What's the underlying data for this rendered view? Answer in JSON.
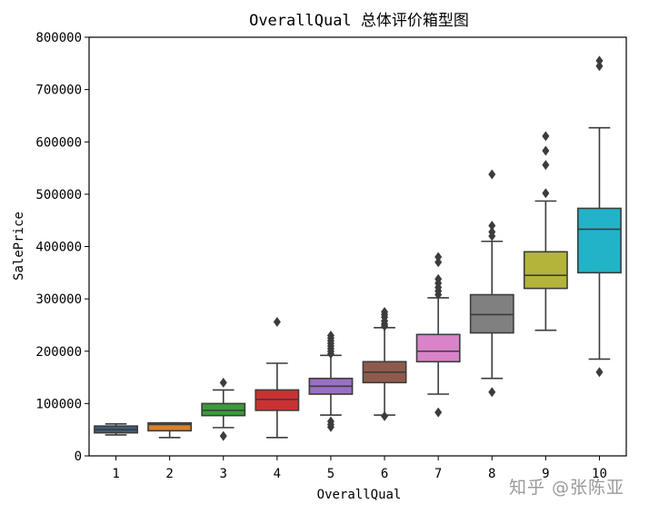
{
  "chart_data": {
    "type": "box",
    "title": "OverallQual 总体评价箱型图",
    "xlabel": "OverallQual",
    "ylabel": "SalePrice",
    "ylim": [
      0,
      800000
    ],
    "yticks": [
      0,
      100000,
      200000,
      300000,
      400000,
      500000,
      600000,
      700000,
      800000
    ],
    "grid": false,
    "categories": [
      "1",
      "2",
      "3",
      "4",
      "5",
      "6",
      "7",
      "8",
      "9",
      "10"
    ],
    "colors": [
      "#3a5f80",
      "#d9822b",
      "#3b9a3b",
      "#c93232",
      "#9970c2",
      "#8f5a4c",
      "#d983c8",
      "#808080",
      "#b4b43a",
      "#22b3c8"
    ],
    "boxes": [
      {
        "category": "1",
        "q1": 44000,
        "median": 50000,
        "q3": 57000,
        "whisker_low": 40000,
        "whisker_high": 61000,
        "outliers": []
      },
      {
        "category": "2",
        "q1": 48000,
        "median": 60000,
        "q3": 63000,
        "whisker_low": 35000,
        "whisker_high": 63000,
        "outliers": []
      },
      {
        "category": "3",
        "q1": 77000,
        "median": 87000,
        "q3": 100000,
        "whisker_low": 54000,
        "whisker_high": 126000,
        "outliers": [
          38000,
          140000
        ]
      },
      {
        "category": "4",
        "q1": 87000,
        "median": 108000,
        "q3": 126000,
        "whisker_low": 35000,
        "whisker_high": 177000,
        "outliers": [
          256000
        ]
      },
      {
        "category": "5",
        "q1": 118000,
        "median": 133000,
        "q3": 148000,
        "whisker_low": 78000,
        "whisker_high": 192000,
        "outliers": [
          55000,
          60000,
          66000,
          195000,
          200000,
          205000,
          210000,
          215000,
          220000,
          225000,
          230000
        ]
      },
      {
        "category": "6",
        "q1": 140000,
        "median": 160000,
        "q3": 180000,
        "whisker_low": 78000,
        "whisker_high": 245000,
        "outliers": [
          76000,
          248000,
          252000,
          258000,
          265000,
          270000,
          275000
        ]
      },
      {
        "category": "7",
        "q1": 180000,
        "median": 200000,
        "q3": 232000,
        "whisker_low": 118000,
        "whisker_high": 302000,
        "outliers": [
          83000,
          308000,
          315000,
          322000,
          330000,
          338000,
          370000,
          380000
        ]
      },
      {
        "category": "8",
        "q1": 235000,
        "median": 270000,
        "q3": 308000,
        "whisker_low": 148000,
        "whisker_high": 410000,
        "outliers": [
          122000,
          420000,
          428000,
          440000,
          538000
        ]
      },
      {
        "category": "9",
        "q1": 320000,
        "median": 345000,
        "q3": 390000,
        "whisker_low": 240000,
        "whisker_high": 487000,
        "outliers": [
          502000,
          556000,
          583000,
          611000
        ]
      },
      {
        "category": "10",
        "q1": 350000,
        "median": 433000,
        "q3": 473000,
        "whisker_low": 185000,
        "whisker_high": 627000,
        "outliers": [
          160000,
          745000,
          755000
        ]
      }
    ]
  },
  "watermark": "知乎 @张陈亚"
}
